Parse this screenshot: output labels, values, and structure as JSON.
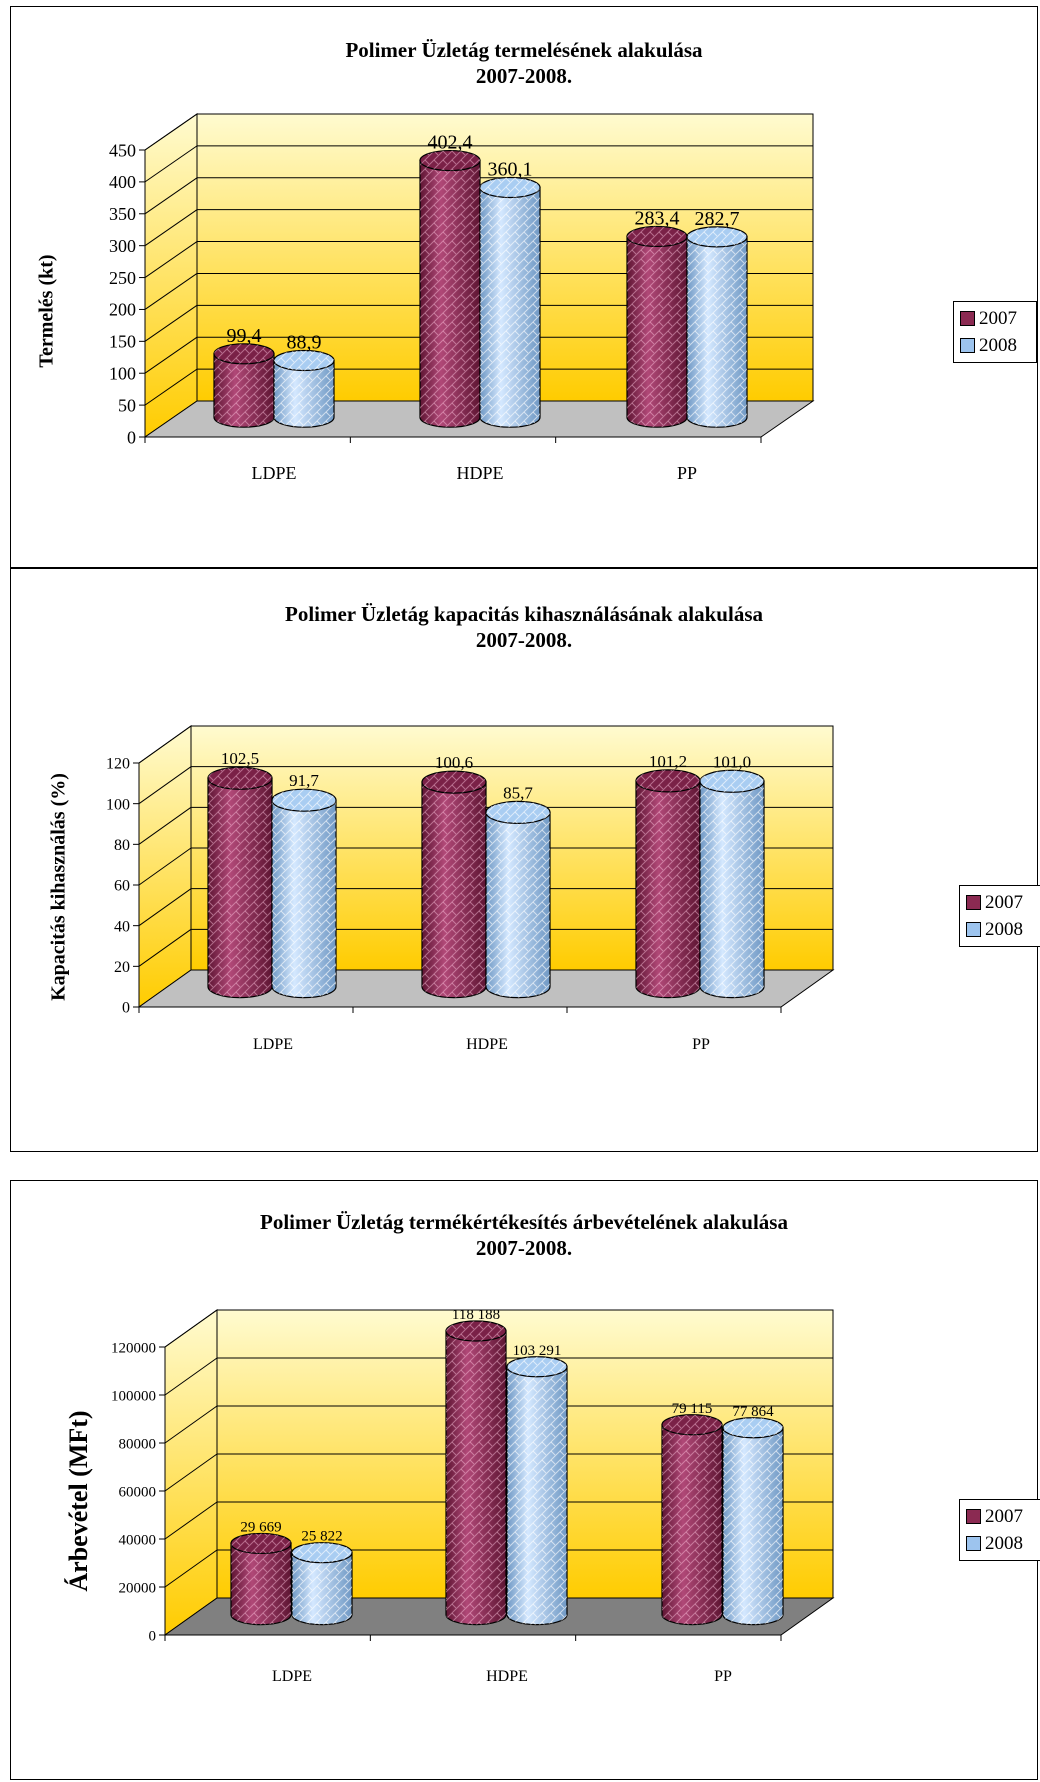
{
  "colors": {
    "series2007": "#8b2a52",
    "series2008": "#9dc4ee",
    "wallTop": "#fffbd0",
    "wallBottom": "#ffcc00",
    "floor": "#c0c0c0",
    "floorDark": "#808080"
  },
  "chart_data": [
    {
      "type": "bar",
      "title": "Polimer Üzletág termelésének alakulása",
      "subtitle": "2007-2008.",
      "ylabel": "Termelés (kt)",
      "xlabel": "",
      "categories": [
        "LDPE",
        "HDPE",
        "PP"
      ],
      "series": [
        {
          "name": "2007",
          "values": [
            99.4,
            402.4,
            283.4
          ],
          "labels": [
            "99,4",
            "402,4",
            "283,4"
          ]
        },
        {
          "name": "2008",
          "values": [
            88.9,
            360.1,
            282.7
          ],
          "labels": [
            "88,9",
            "360,1",
            "282,7"
          ]
        }
      ],
      "ylim": [
        0,
        450
      ],
      "yticks": [
        "0",
        "50",
        "100",
        "150",
        "200",
        "250",
        "300",
        "350",
        "400",
        "450"
      ],
      "grid": true,
      "legend": "right"
    },
    {
      "type": "bar",
      "title": "Polimer Üzletág kapacitás kihasználásának alakulása",
      "subtitle": "2007-2008.",
      "ylabel": "Kapacitás kihasználás (%)",
      "xlabel": "",
      "categories": [
        "LDPE",
        "HDPE",
        "PP"
      ],
      "series": [
        {
          "name": "2007",
          "values": [
            102.5,
            100.6,
            101.2
          ],
          "labels": [
            "102,5",
            "100,6",
            "101,2"
          ]
        },
        {
          "name": "2008",
          "values": [
            91.7,
            85.7,
            101.0
          ],
          "labels": [
            "91,7",
            "85,7",
            "101,0"
          ]
        }
      ],
      "ylim": [
        0,
        120
      ],
      "yticks": [
        "0",
        "20",
        "40",
        "60",
        "80",
        "100",
        "120"
      ],
      "grid": true,
      "legend": "right"
    },
    {
      "type": "bar",
      "title": "Polimer Üzletág termékértékesítés árbevételének alakulása",
      "subtitle": "2007-2008.",
      "ylabel": "Árbevétel (MFt)",
      "xlabel": "",
      "categories": [
        "LDPE",
        "HDPE",
        "PP"
      ],
      "series": [
        {
          "name": "2007",
          "values": [
            29669,
            118188,
            79115
          ],
          "labels": [
            "29 669",
            "118 188",
            "79 115"
          ]
        },
        {
          "name": "2008",
          "values": [
            25822,
            103291,
            77864
          ],
          "labels": [
            "25 822",
            "103 291",
            "77 864"
          ]
        }
      ],
      "ylim": [
        0,
        120000
      ],
      "yticks": [
        "0",
        "20000",
        "40000",
        "60000",
        "80000",
        "100000",
        "120000"
      ],
      "grid": true,
      "legend": "right"
    }
  ]
}
